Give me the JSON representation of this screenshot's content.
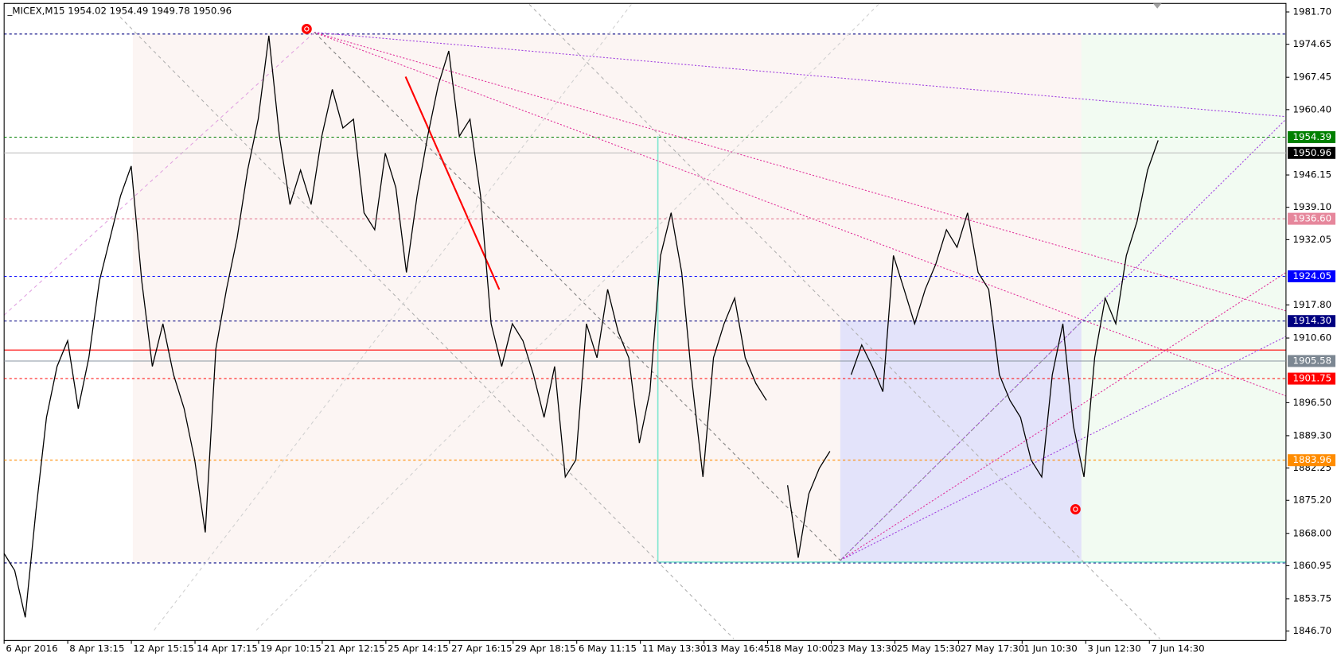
{
  "chart_data": {
    "type": "line",
    "title": "_MICEX,M15  1954.02 1954.49 1949.78 1950.96",
    "x_labels": [
      "6 Apr 2016",
      "8 Apr 13:15",
      "12 Apr 15:15",
      "14 Apr 17:15",
      "19 Apr 10:15",
      "21 Apr 12:15",
      "25 Apr 14:15",
      "27 Apr 16:15",
      "29 Apr 18:15",
      "6 May 11:15",
      "11 May 13:30",
      "13 May 16:45",
      "18 May 10:00",
      "23 May 13:30",
      "25 May 15:30",
      "27 May 17:30",
      "1 Jun 10:30",
      "3 Jun 12:30",
      "7 Jun 14:30"
    ],
    "series": [
      {
        "name": "_MICEX,M15",
        "color": "#000000",
        "values": [
          1863.6,
          1859.9,
          1849.7,
          1872.9,
          1893.3,
          1904.4,
          1910.0,
          1895.2,
          1906.3,
          1923.0,
          1932.3,
          1941.6,
          1948.1,
          1923.0,
          1904.4,
          1913.7,
          1902.6,
          1895.2,
          1884.0,
          1868.2,
          1908.2,
          1921.2,
          1932.3,
          1947.2,
          1958.3,
          1976.5,
          1954.6,
          1939.7,
          1947.2,
          1939.7,
          1954.6,
          1964.8,
          1956.4,
          1958.3,
          1937.9,
          1934.2,
          1950.9,
          1943.4,
          1924.9,
          1941.6,
          1954.6,
          1965.7,
          1973.2,
          1954.6,
          1958.3,
          1941.6,
          1913.7,
          1904.4,
          1913.7,
          1910.0,
          1902.6,
          1893.3,
          1904.4,
          1880.3,
          1884.0,
          1913.7,
          1906.3,
          1921.2,
          1911.9,
          1906.3,
          1887.7,
          1898.9,
          1928.6,
          1937.9,
          1924.9,
          1900.7,
          1880.3,
          1906.3,
          1913.7,
          1919.3,
          1906.3,
          1900.7,
          1897.0,
          null,
          1878.5,
          1862.7,
          1876.6,
          1882.2,
          1885.9,
          null,
          1902.6,
          1909.1,
          1904.4,
          1898.9,
          1928.6,
          1921.2,
          1913.7,
          1921.2,
          1926.7,
          1934.2,
          1930.4,
          1937.9,
          1924.9,
          1921.2,
          1902.6,
          1897.0,
          1893.3,
          1884.0,
          1880.3,
          1902.6,
          1913.7,
          1891.4,
          1880.3,
          1906.3,
          1919.3,
          1913.7,
          1928.6,
          1936.0,
          1947.2,
          1953.7
        ]
      }
    ],
    "ylim": [
      1844.66,
      1983.56
    ],
    "yticks": [
      {
        "value": 1981.7,
        "label": "1981.70"
      },
      {
        "value": 1974.65,
        "label": "1974.65"
      },
      {
        "value": 1967.45,
        "label": "1967.45"
      },
      {
        "value": 1960.4,
        "label": "1960.40"
      },
      {
        "value": 1946.15,
        "label": "1946.15"
      },
      {
        "value": 1939.1,
        "label": "1939.10"
      },
      {
        "value": 1932.05,
        "label": "1932.05"
      },
      {
        "value": 1917.8,
        "label": "1917.80"
      },
      {
        "value": 1910.6,
        "label": "1910.60"
      },
      {
        "value": 1896.5,
        "label": "1896.50"
      },
      {
        "value": 1889.3,
        "label": "1889.30"
      },
      {
        "value": 1882.25,
        "label": "1882.25"
      },
      {
        "value": 1875.2,
        "label": "1875.20"
      },
      {
        "value": 1868.0,
        "label": "1868.00"
      },
      {
        "value": 1860.95,
        "label": "1860.95"
      },
      {
        "value": 1853.75,
        "label": "1853.75"
      },
      {
        "value": 1846.7,
        "label": "1846.70"
      }
    ],
    "levels": [
      {
        "value": 1954.39,
        "label": "1954.39",
        "color": "#008000",
        "box": "#008000",
        "dash": true
      },
      {
        "value": 1950.96,
        "label": "1950.96",
        "color": "#c0c0c0",
        "box": "#000000",
        "dash": false
      },
      {
        "value": 1936.6,
        "label": "1936.60",
        "color": "#e0708a",
        "box": "#e6879c",
        "dash": true
      },
      {
        "value": 1924.05,
        "label": "1924.05",
        "color": "#0000ff",
        "box": "#0000ff",
        "dash": true
      },
      {
        "value": 1914.3,
        "label": "1914.30",
        "color": "#000080",
        "box": "#000080",
        "dash": true
      },
      {
        "value": 1905.58,
        "label": "1905.58",
        "color": "#8a96a0",
        "box": "#7c8792",
        "dash": false
      },
      {
        "value": 1901.75,
        "label": "1901.75",
        "color": "#ff0000",
        "box": "#ff0000",
        "dash": true
      },
      {
        "value": 1883.96,
        "label": "1883.96",
        "color": "#ff8c00",
        "box": "#ff8c00",
        "dash": true
      }
    ]
  }
}
